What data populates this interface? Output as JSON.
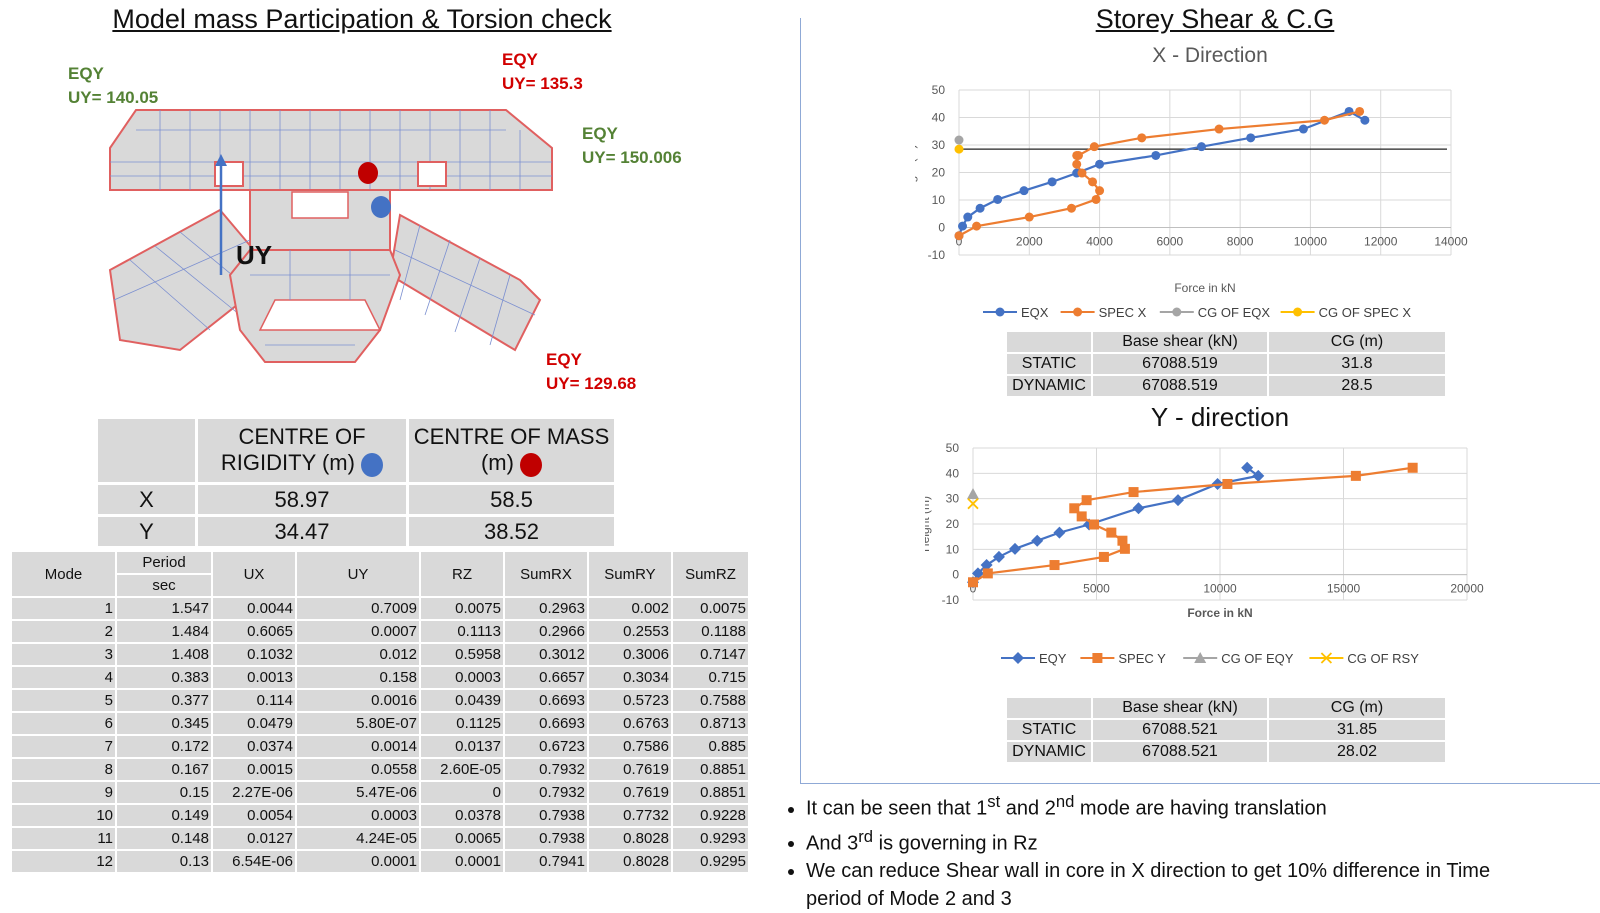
{
  "left_title": "Model mass Participation & Torsion check",
  "right_title": "Storey Shear & C.G",
  "plan": {
    "labels": [
      {
        "name": "eqy-label-top-left",
        "line1": "EQY",
        "line2": "UY= 140.05",
        "color": "green"
      },
      {
        "name": "eqy-label-top-center",
        "line1": "EQY",
        "line2": "UY= 135.3",
        "color": "red"
      },
      {
        "name": "eqy-label-right",
        "line1": "EQY",
        "line2": "UY= 150.006",
        "color": "green"
      },
      {
        "name": "eqy-label-bottom-right",
        "line1": "EQY",
        "line2": "UY= 129.68",
        "color": "red"
      }
    ],
    "arrow_label": "UY"
  },
  "com_table": {
    "headers": [
      "",
      "CENTRE OF RIGIDITY (m)",
      "CENTRE OF MASS (m)"
    ],
    "header_lines": {
      "cr1": "CENTRE OF",
      "cr2": "RIGIDITY (m)",
      "cm1": "CENTRE OF MASS",
      "cm2": "(m)"
    },
    "rows": [
      {
        "axis": "X",
        "cr": "58.97",
        "cm": "58.5"
      },
      {
        "axis": "Y",
        "cr": "34.47",
        "cm": "38.52"
      }
    ]
  },
  "modal_table": {
    "headers": {
      "mode": "Mode",
      "period": "Period",
      "sec": "sec",
      "ux": "UX",
      "uy": "UY",
      "rz": "RZ",
      "sumrx": "SumRX",
      "sumry": "SumRY",
      "sumrz": "SumRZ"
    },
    "rows": [
      [
        "1",
        "1.547",
        "0.0044",
        "0.7009",
        "0.0075",
        "0.2963",
        "0.002",
        "0.0075"
      ],
      [
        "2",
        "1.484",
        "0.6065",
        "0.0007",
        "0.1113",
        "0.2966",
        "0.2553",
        "0.1188"
      ],
      [
        "3",
        "1.408",
        "0.1032",
        "0.012",
        "0.5958",
        "0.3012",
        "0.3006",
        "0.7147"
      ],
      [
        "4",
        "0.383",
        "0.0013",
        "0.158",
        "0.0003",
        "0.6657",
        "0.3034",
        "0.715"
      ],
      [
        "5",
        "0.377",
        "0.114",
        "0.0016",
        "0.0439",
        "0.6693",
        "0.5723",
        "0.7588"
      ],
      [
        "6",
        "0.345",
        "0.0479",
        "5.80E-07",
        "0.1125",
        "0.6693",
        "0.6763",
        "0.8713"
      ],
      [
        "7",
        "0.172",
        "0.0374",
        "0.0014",
        "0.0137",
        "0.6723",
        "0.7586",
        "0.885"
      ],
      [
        "8",
        "0.167",
        "0.0015",
        "0.0558",
        "2.60E-05",
        "0.7932",
        "0.7619",
        "0.8851"
      ],
      [
        "9",
        "0.15",
        "2.27E-06",
        "5.47E-06",
        "0",
        "0.7932",
        "0.7619",
        "0.8851"
      ],
      [
        "10",
        "0.149",
        "0.0054",
        "0.0003",
        "0.0378",
        "0.7938",
        "0.7732",
        "0.9228"
      ],
      [
        "11",
        "0.148",
        "0.0127",
        "4.24E-05",
        "0.0065",
        "0.7938",
        "0.8028",
        "0.9293"
      ],
      [
        "12",
        "0.13",
        "6.54E-06",
        "0.0001",
        "0.0001",
        "0.7941",
        "0.8028",
        "0.9295"
      ]
    ]
  },
  "chart_data": [
    {
      "type": "scatter",
      "title": "X - Direction",
      "xlabel": "Force in kN",
      "ylabel": "Height  (m)",
      "xlim": [
        0,
        14000
      ],
      "ylim": [
        -10,
        50
      ],
      "xticks": [
        "0",
        "2000",
        "4000",
        "6000",
        "8000",
        "10000",
        "12000",
        "14000"
      ],
      "yticks": [
        "-10",
        "0",
        "10",
        "20",
        "30",
        "40",
        "50"
      ],
      "series": [
        {
          "name": "EQX",
          "color": "#4472c4",
          "marker": "circle",
          "x": [
            0,
            100,
            250,
            600,
            1100,
            1850,
            2650,
            3350,
            4000,
            5600,
            6900,
            8300,
            9800,
            11100,
            11550
          ],
          "y": [
            -3,
            0.5,
            3.8,
            7,
            10.2,
            13.4,
            16.6,
            19.8,
            23,
            26.2,
            29.4,
            32.6,
            35.8,
            42.2,
            39
          ]
        },
        {
          "name": "SPEC X",
          "color": "#ed7d31",
          "marker": "circle",
          "x": [
            0,
            500,
            2000,
            3200,
            3900,
            4000,
            3800,
            3500,
            3350,
            3350,
            3400,
            3850,
            5200,
            7400,
            10400,
            11400
          ],
          "y": [
            -3,
            0.5,
            3.8,
            7,
            10.2,
            13.4,
            16.6,
            19.8,
            23,
            26.2,
            26.2,
            29.4,
            32.6,
            35.8,
            39,
            42.2
          ]
        },
        {
          "name": "CG OF EQX",
          "color": "#a5a5a5",
          "marker": "circle",
          "x": [
            0
          ],
          "y": [
            31.8
          ]
        },
        {
          "name": "CG OF SPEC X",
          "color": "#ffc000",
          "marker": "circle",
          "x": [
            0
          ],
          "y": [
            28.5
          ]
        }
      ],
      "reference_line_y": 28.5,
      "legend": "bottom",
      "grid": true
    },
    {
      "type": "scatter",
      "title": "Y - direction",
      "xlabel": "Force in kN",
      "ylabel": "Height (m)",
      "xlim": [
        0,
        20000
      ],
      "ylim": [
        -10,
        50
      ],
      "xticks": [
        "0",
        "5000",
        "10000",
        "15000",
        "20000"
      ],
      "yticks": [
        "-10",
        "0",
        "10",
        "20",
        "30",
        "40",
        "50"
      ],
      "series": [
        {
          "name": "EQY",
          "color": "#4472c4",
          "marker": "diamond",
          "x": [
            0,
            200,
            550,
            1050,
            1700,
            2600,
            3500,
            4700,
            6700,
            8300,
            9900,
            11550,
            11100
          ],
          "y": [
            -3,
            0.5,
            3.8,
            7,
            10.2,
            13.4,
            16.6,
            19.8,
            26.2,
            29.4,
            35.8,
            39,
            42.2
          ]
        },
        {
          "name": "SPEC Y",
          "color": "#ed7d31",
          "marker": "square",
          "x": [
            0,
            600,
            3300,
            5300,
            6150,
            6050,
            5600,
            4900,
            4400,
            4100,
            4600,
            6500,
            10300,
            15500,
            17800
          ],
          "y": [
            -3,
            0.5,
            3.8,
            7,
            10.2,
            13.4,
            16.6,
            19.8,
            23,
            26.2,
            29.4,
            32.6,
            35.8,
            39,
            42.2
          ]
        },
        {
          "name": "CG OF EQY",
          "color": "#a5a5a5",
          "marker": "triangle",
          "x": [
            0
          ],
          "y": [
            31.85
          ]
        },
        {
          "name": "CG OF RSY",
          "color": "#ffc000",
          "marker": "x",
          "x": [
            0
          ],
          "y": [
            28.02
          ]
        }
      ],
      "legend": "bottom",
      "grid": true
    }
  ],
  "bs_x": {
    "headers": [
      "",
      "Base shear (kN)",
      "CG (m)"
    ],
    "rows": [
      [
        "STATIC",
        "67088.519",
        "31.8"
      ],
      [
        "DYNAMIC",
        "67088.519",
        "28.5"
      ]
    ]
  },
  "bs_y": {
    "headers": [
      "",
      "Base shear (kN)",
      "CG (m)"
    ],
    "rows": [
      [
        "STATIC",
        "67088.521",
        "31.85"
      ],
      [
        "DYNAMIC",
        "67088.521",
        "28.02"
      ]
    ]
  },
  "bullets": {
    "b1_pre": "It can be seen that 1",
    "b1_sup1": "st",
    "b1_mid": " and 2",
    "b1_sup2": "nd",
    "b1_post": " mode are having translation",
    "b2_pre": "And 3",
    "b2_sup": "rd",
    "b2_post": " is governing in Rz",
    "b3": "We can reduce Shear wall in core in X direction to get 10% difference in Time period of Mode 2 and 3"
  }
}
